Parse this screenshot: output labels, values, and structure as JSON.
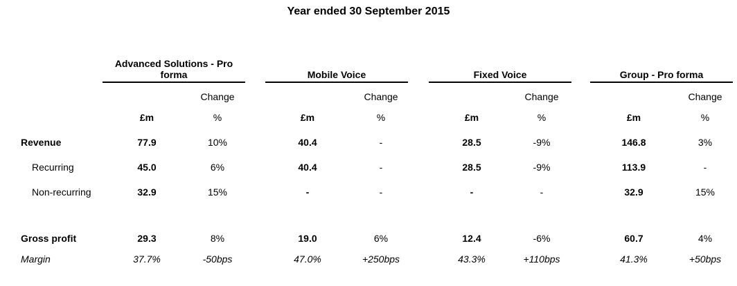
{
  "title": "Year ended 30 September 2015",
  "segments": [
    {
      "name": "Advanced Solutions - Pro",
      "name2": "forma"
    },
    {
      "name": "Mobile Voice"
    },
    {
      "name": "Fixed Voice"
    },
    {
      "name": "Group - Pro forma"
    }
  ],
  "subheader": {
    "change": "Change",
    "unit": "£m",
    "pct": "%"
  },
  "rows": [
    {
      "label": "Revenue",
      "values": [
        "77.9",
        "10%",
        "40.4",
        "-",
        "28.5",
        "-9%",
        "146.8",
        "3%"
      ]
    },
    {
      "label": "Recurring",
      "values": [
        "45.0",
        "6%",
        "40.4",
        "-",
        "28.5",
        "-9%",
        "113.9",
        "-"
      ]
    },
    {
      "label": "Non-recurring",
      "values": [
        "32.9",
        "15%",
        "-",
        "-",
        "-",
        "-",
        "32.9",
        "15%"
      ]
    },
    {
      "label": "Gross profit",
      "values": [
        "29.3",
        "8%",
        "19.0",
        "6%",
        "12.4",
        "-6%",
        "60.7",
        "4%"
      ]
    },
    {
      "label": "Margin",
      "values": [
        "37.7%",
        "-50bps",
        "47.0%",
        "+250bps",
        "43.3%",
        "+110bps",
        "41.3%",
        "+50bps"
      ]
    }
  ]
}
